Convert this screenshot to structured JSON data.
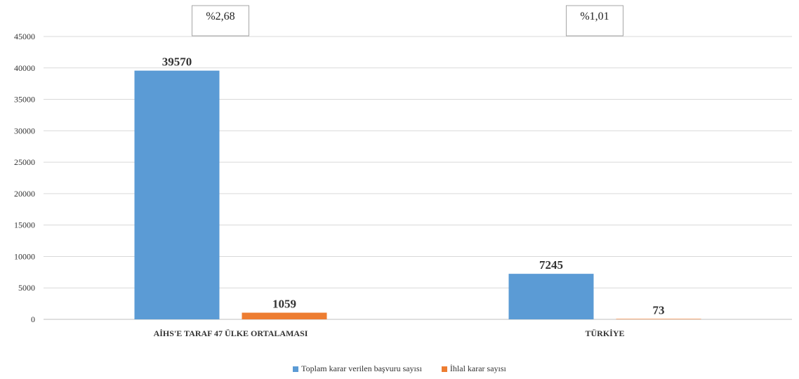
{
  "chart_data": {
    "type": "bar",
    "categories": [
      "AİHS'E TARAF 47 ÜLKE ORTALAMASI",
      "TÜRKİYE"
    ],
    "series": [
      {
        "name": "Toplam karar verilen başvuru sayısı",
        "values": [
          39570,
          7245
        ],
        "color": "#5b9bd5"
      },
      {
        "name": "İhlal karar sayısı",
        "values": [
          1059,
          73
        ],
        "color": "#ed7d31"
      }
    ],
    "annotations": [
      "%2,68",
      "%1,01"
    ],
    "ylim": [
      0,
      45000
    ],
    "yticks": [
      0,
      5000,
      10000,
      15000,
      20000,
      25000,
      30000,
      35000,
      40000,
      45000
    ],
    "grid": true,
    "legend_position": "bottom"
  }
}
